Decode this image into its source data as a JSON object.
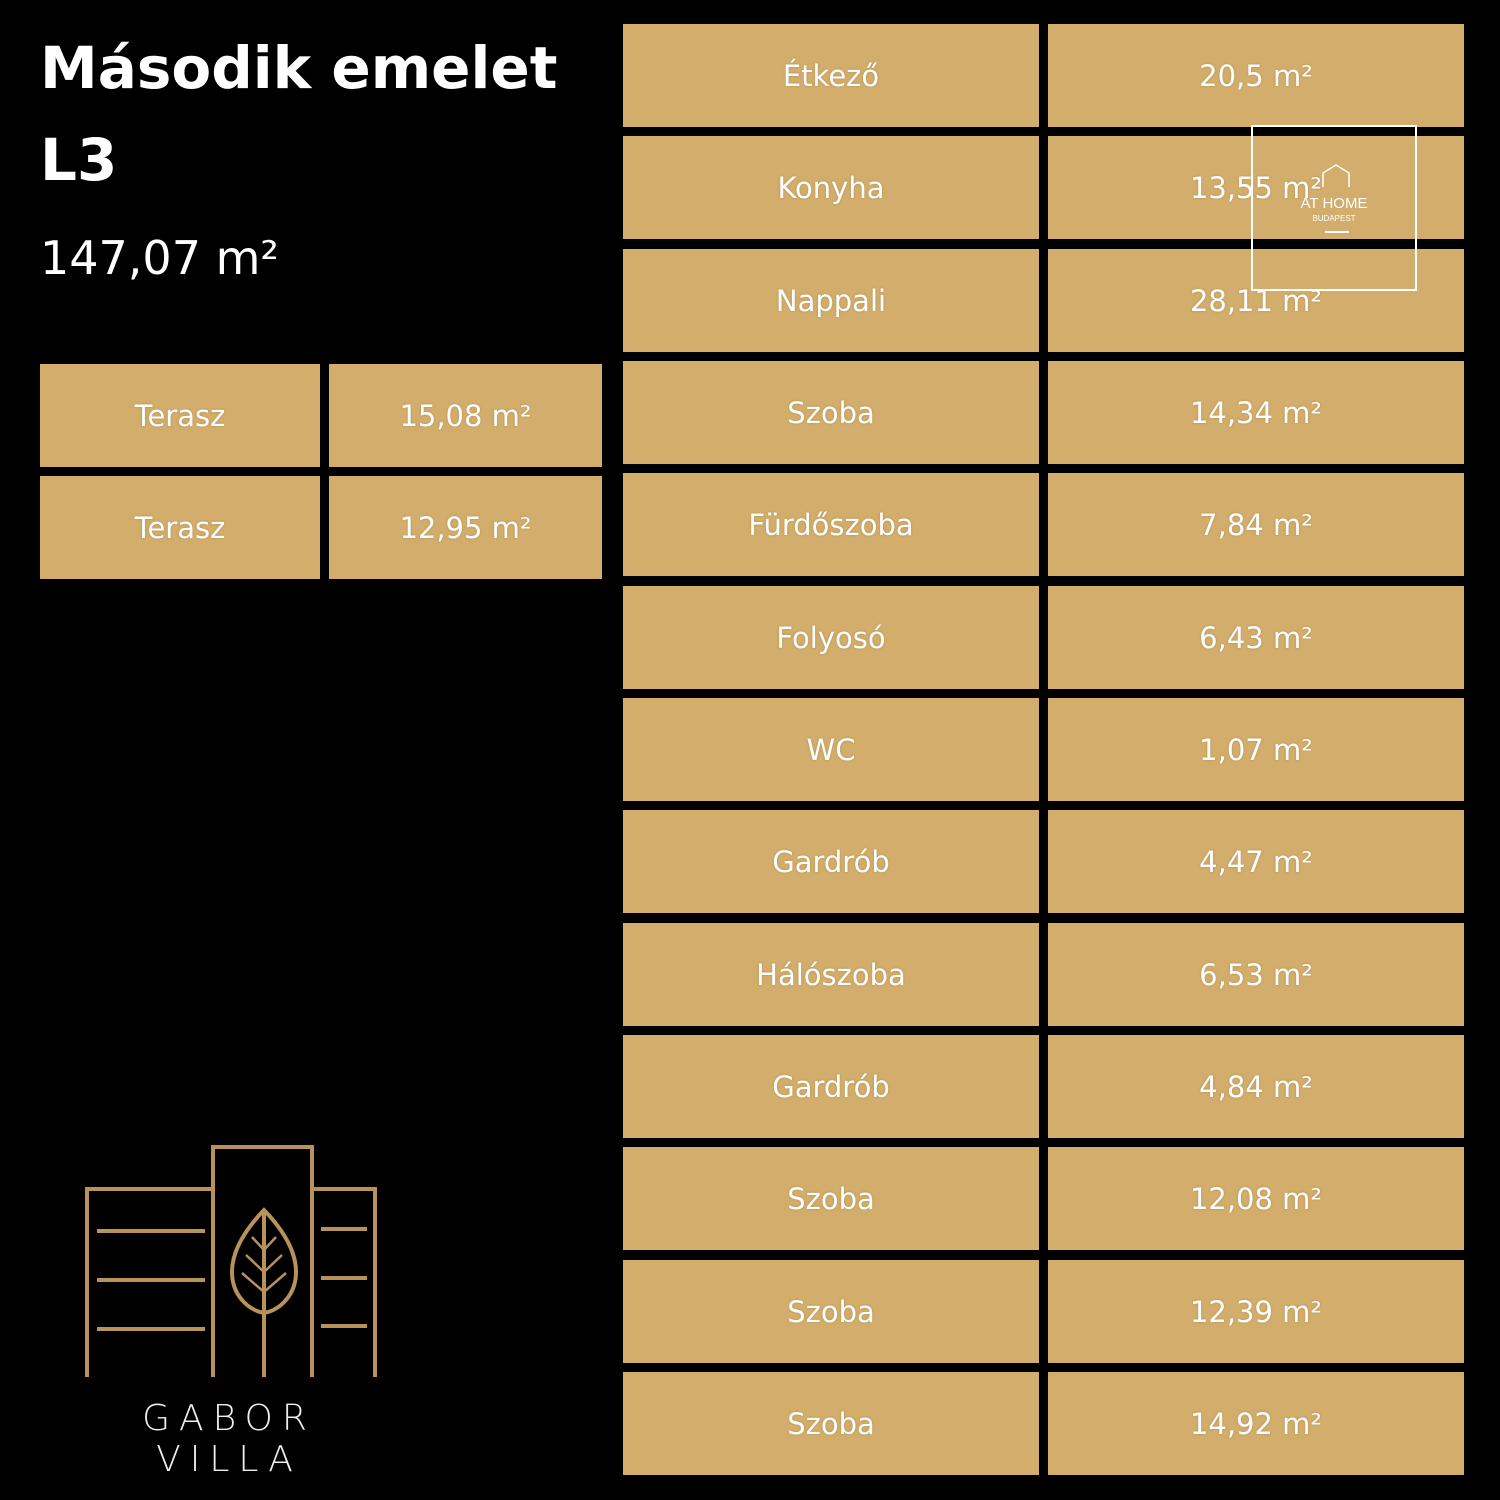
{
  "header": {
    "title": "Második emelet",
    "unit": "L3",
    "total_area": "147,07 m²"
  },
  "colors": {
    "accent": "#D2AD6B",
    "background": "#000000",
    "text": "#FFFFFF"
  },
  "terraces": [
    {
      "name": "Terasz",
      "area": "15,08 m²"
    },
    {
      "name": "Terasz",
      "area": "12,95 m²"
    }
  ],
  "rooms": [
    {
      "name": "Étkező",
      "area": "20,5 m²"
    },
    {
      "name": "Konyha",
      "area": "13,55 m²"
    },
    {
      "name": "Nappali",
      "area": "28,11 m²"
    },
    {
      "name": "Szoba",
      "area": "14,34 m²"
    },
    {
      "name": "Fürdőszoba",
      "area": "7,84 m²"
    },
    {
      "name": "Folyosó",
      "area": "6,43 m²"
    },
    {
      "name": "WC",
      "area": "1,07 m²"
    },
    {
      "name": "Gardrób",
      "area": "4,47 m²"
    },
    {
      "name": "Hálószoba",
      "area": "6,53 m²"
    },
    {
      "name": "Gardrób",
      "area": "4,84 m²"
    },
    {
      "name": "Szoba",
      "area": "12,08 m²"
    },
    {
      "name": "Szoba",
      "area": "12,39 m²"
    },
    {
      "name": "Szoba",
      "area": "14,92 m²"
    }
  ],
  "watermark": {
    "line1": "AT HOME",
    "line2": "BUDAPEST"
  },
  "brand": {
    "name": "GABOR VILLA"
  }
}
